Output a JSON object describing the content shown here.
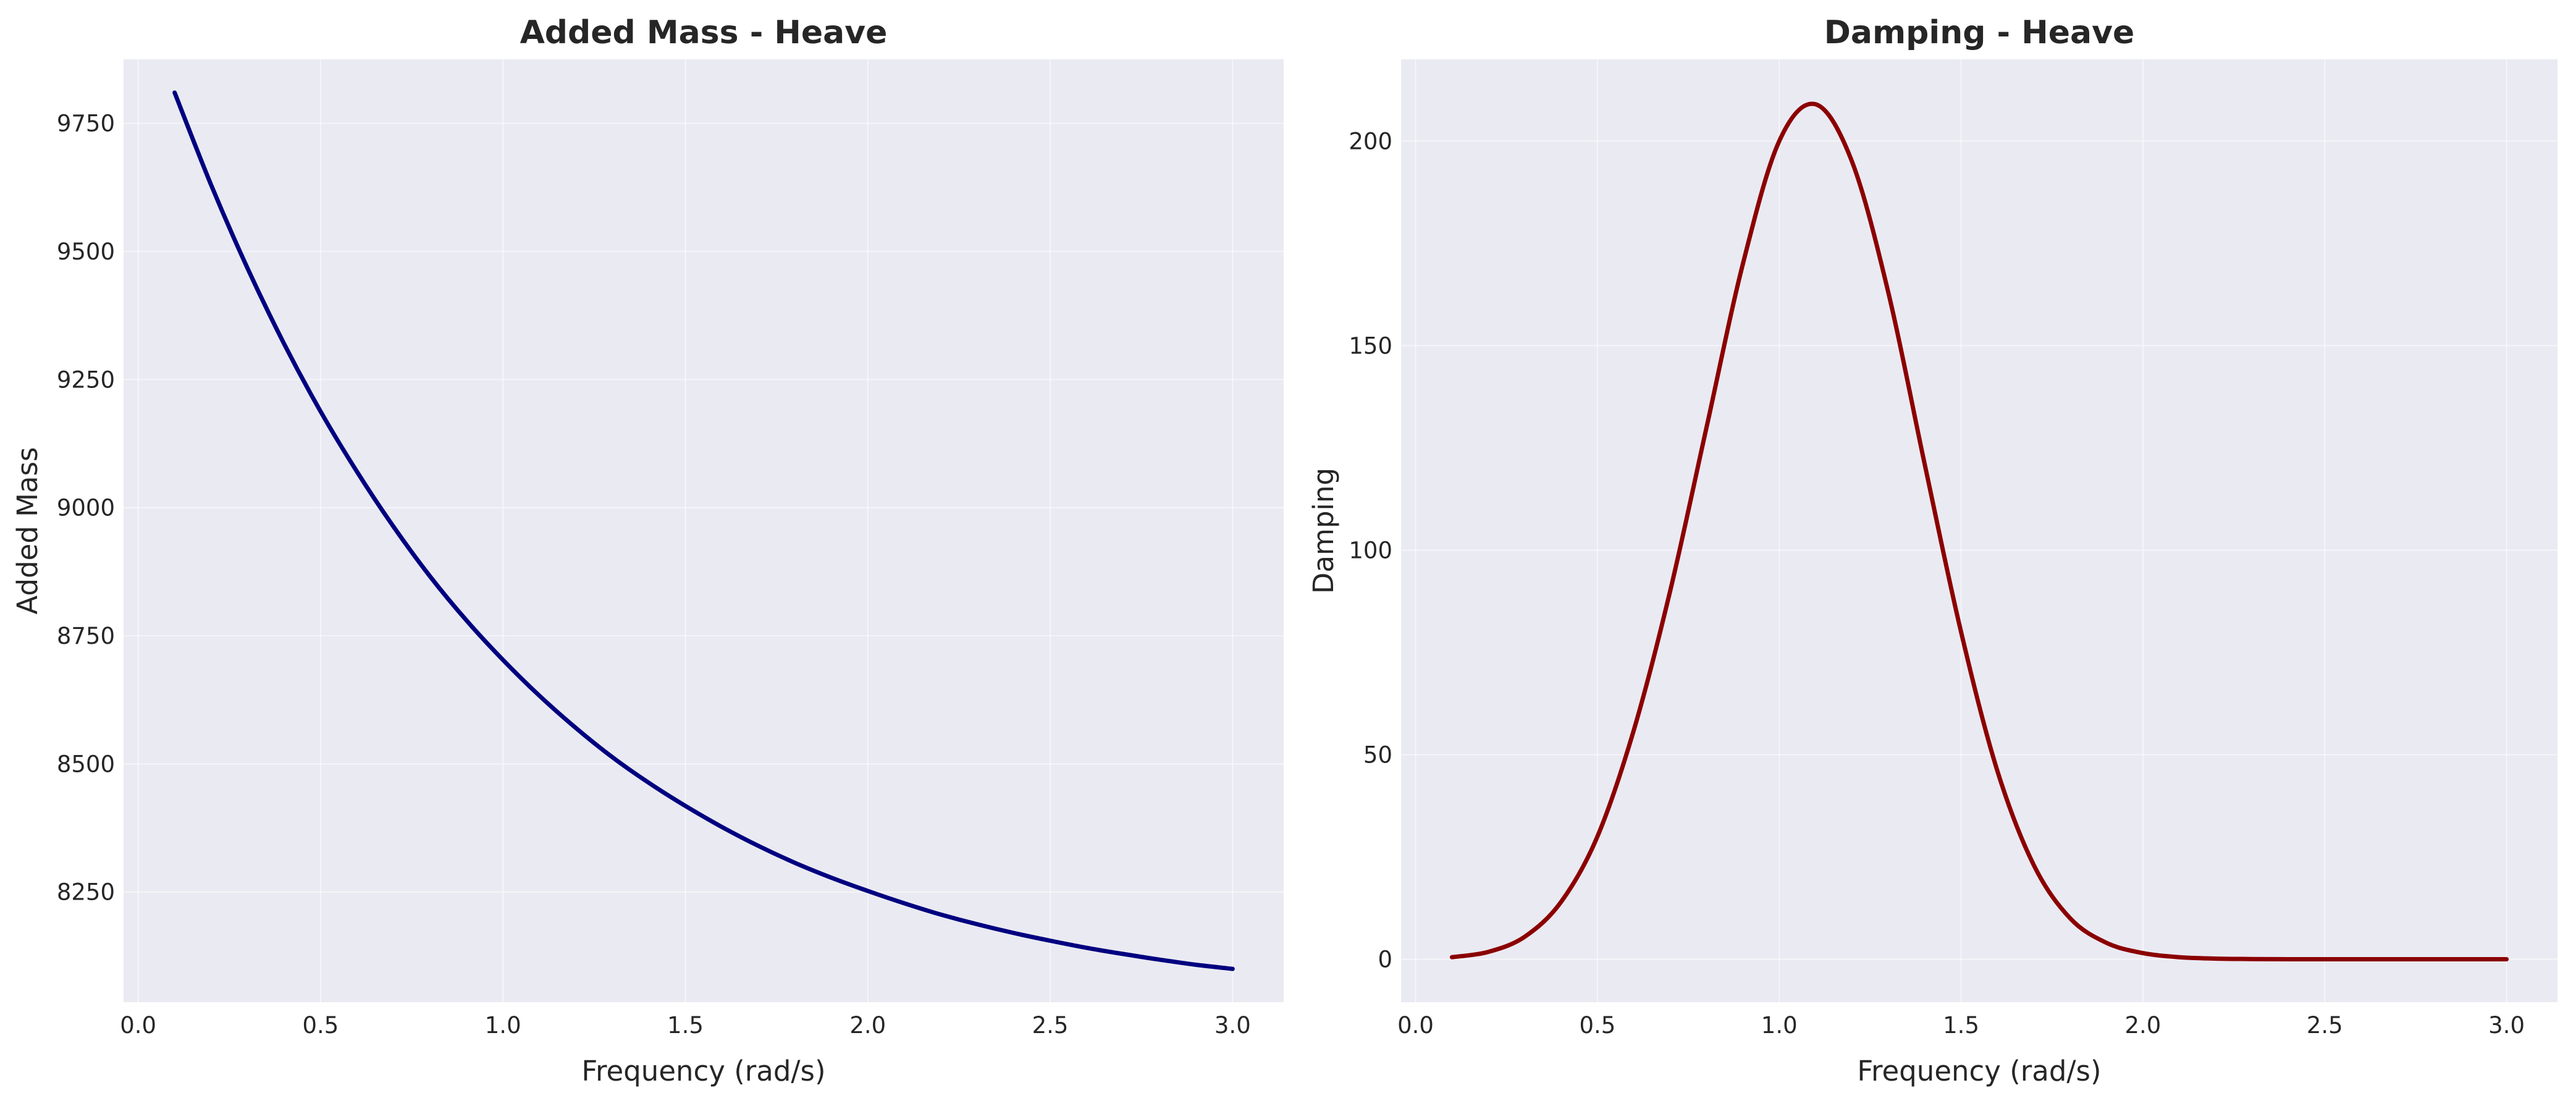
{
  "chart_data": [
    {
      "type": "line",
      "title": "Added Mass - Heave",
      "xlabel": "Frequency (rad/s)",
      "ylabel": "Added Mass",
      "xlim": [
        -0.04,
        3.14
      ],
      "ylim": [
        8035,
        9875
      ],
      "xticks": [
        "0.0",
        "0.5",
        "1.0",
        "1.5",
        "2.0",
        "2.5",
        "3.0"
      ],
      "yticks": [
        "8250",
        "8500",
        "8750",
        "9000",
        "9250",
        "9500",
        "9750"
      ],
      "grid": true,
      "color": "#000080",
      "x": [
        0.1,
        0.2,
        0.3,
        0.4,
        0.5,
        0.6,
        0.7,
        0.8,
        0.9,
        1.0,
        1.1,
        1.2,
        1.3,
        1.4,
        1.5,
        1.6,
        1.7,
        1.8,
        1.9,
        2.0,
        2.1,
        2.2,
        2.3,
        2.4,
        2.5,
        2.6,
        2.7,
        2.8,
        2.9,
        3.0
      ],
      "y": [
        9810,
        9630,
        9467,
        9320,
        9188,
        9070,
        8963,
        8866,
        8780,
        8703,
        8633,
        8570,
        8513,
        8463,
        8418,
        8377,
        8340,
        8307,
        8278,
        8252,
        8228,
        8206,
        8187,
        8170,
        8155,
        8141,
        8129,
        8118,
        8108,
        8100
      ]
    },
    {
      "type": "line",
      "title": "Damping - Heave",
      "xlabel": "Frequency (rad/s)",
      "ylabel": "Damping",
      "xlim": [
        -0.04,
        3.14
      ],
      "ylim": [
        -10.5,
        220
      ],
      "xticks": [
        "0.0",
        "0.5",
        "1.0",
        "1.5",
        "2.0",
        "2.5",
        "3.0"
      ],
      "yticks": [
        "0",
        "50",
        "100",
        "150",
        "200"
      ],
      "grid": true,
      "color": "#8b0000",
      "x": [
        0.1,
        0.2,
        0.3,
        0.4,
        0.5,
        0.6,
        0.7,
        0.8,
        0.9,
        1.0,
        1.1,
        1.2,
        1.3,
        1.4,
        1.5,
        1.6,
        1.7,
        1.8,
        1.9,
        2.0,
        2.1,
        2.2,
        2.3,
        2.4,
        2.5,
        2.6,
        2.7,
        2.8,
        2.9,
        3.0
      ],
      "y": [
        0.5,
        1.8,
        5.5,
        14,
        30,
        56,
        90,
        130,
        170,
        200,
        209,
        195,
        163,
        121,
        80,
        46,
        23,
        10,
        4,
        1.5,
        0.5,
        0.15,
        0.05,
        0,
        0,
        0,
        0,
        0,
        0,
        0
      ]
    }
  ]
}
